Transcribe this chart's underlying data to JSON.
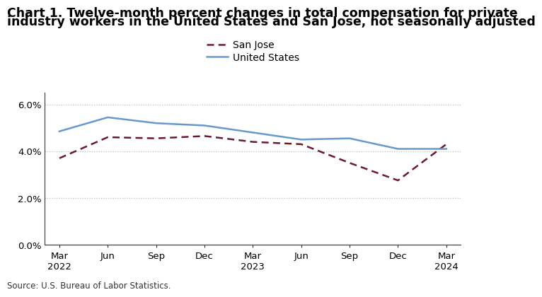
{
  "title_line1": "Chart 1. Twelve-month percent changes in total compensation for private",
  "title_line2": "industry workers in the United States and San Jose, not seasonally adjusted",
  "source": "Source: U.S. Bureau of Labor Statistics.",
  "x_labels": [
    "Mar\n2022",
    "Jun",
    "Sep",
    "Dec",
    "Mar\n2023",
    "Jun",
    "Sep",
    "Dec",
    "Mar\n2024"
  ],
  "san_jose": [
    3.7,
    4.6,
    4.55,
    4.65,
    4.4,
    4.3,
    3.5,
    2.75,
    4.3
  ],
  "united_states": [
    4.85,
    5.45,
    5.2,
    5.1,
    4.8,
    4.5,
    4.55,
    4.1,
    4.1
  ],
  "san_jose_color": "#6b1a2e",
  "us_color": "#6699cc",
  "ylim": [
    0.0,
    6.5
  ],
  "yticks": [
    0.0,
    2.0,
    4.0,
    6.0
  ],
  "ytick_labels": [
    "0.0%",
    "2.0%",
    "4.0%",
    "6.0%"
  ],
  "legend_san_jose": "San Jose",
  "legend_us": "United States",
  "background_color": "#ffffff",
  "grid_color": "#bbbbbb",
  "title_fontsize": 12.5,
  "axis_fontsize": 9.5,
  "source_fontsize": 8.5
}
